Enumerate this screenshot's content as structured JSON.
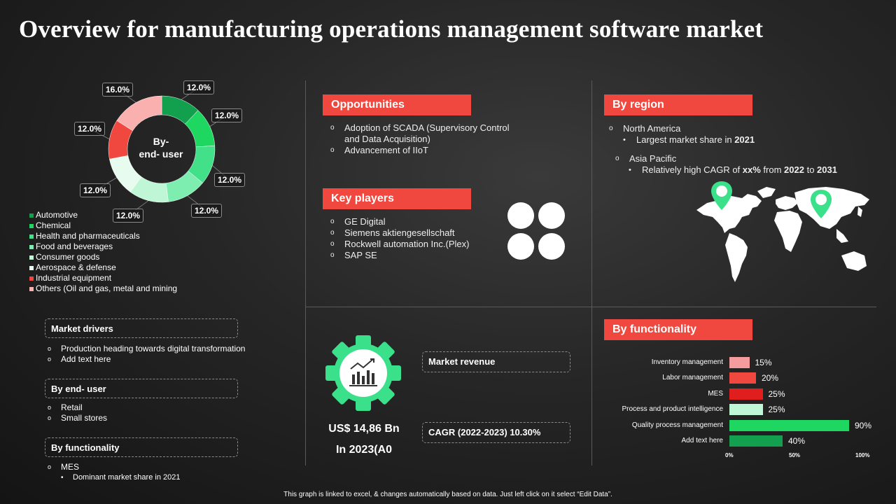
{
  "title": "Overview for manufacturing operations management software market",
  "donut": {
    "center_line1": "By-",
    "center_line2": "end- user"
  },
  "chart_data": [
    {
      "type": "pie",
      "title": "By- end- user",
      "categories": [
        "Automotive",
        "Chemical",
        "Health and pharmaceuticals",
        "Food and beverages",
        "Consumer goods",
        "Aerospace & defense",
        "Industrial equipment",
        "Others (Oil and gas, metal and mining"
      ],
      "values": [
        12.0,
        12.0,
        12.0,
        12.0,
        12.0,
        12.0,
        12.0,
        16.0
      ],
      "labels": [
        "12.0%",
        "12.0%",
        "12.0%",
        "12.0%",
        "12.0%",
        "12.0%",
        "12.0%",
        "16.0%"
      ],
      "colors": [
        "#12a04f",
        "#1ed760",
        "#43e08a",
        "#7dedb0",
        "#bff7d6",
        "#e7fbef",
        "#f0483e",
        "#fbb0b0"
      ]
    },
    {
      "type": "bar",
      "orientation": "horizontal",
      "title": "By functionality",
      "categories": [
        "Inventory management",
        "Labor management",
        "MES",
        "Process and product intelligence",
        "Quality process management",
        "Add text here"
      ],
      "values": [
        15,
        20,
        25,
        25,
        90,
        40
      ],
      "value_labels": [
        "15%",
        "20%",
        "25%",
        "25%",
        "90%",
        "40%"
      ],
      "colors": [
        "#f79c9c",
        "#f0483e",
        "#e01e1e",
        "#bff7d6",
        "#1ed760",
        "#12a04f"
      ],
      "xlim": [
        0,
        100
      ],
      "ticks": [
        "0%",
        "50%",
        "100%"
      ]
    }
  ],
  "market_drivers": {
    "title": "Market drivers",
    "items": [
      "Production heading towards digital transformation",
      "Add text here"
    ]
  },
  "by_end_user": {
    "title": "By end- user",
    "items": [
      "Retail",
      "Small stores"
    ]
  },
  "by_functionality_left": {
    "title": "By functionality",
    "item": "MES",
    "sub": "Dominant market share in 2021"
  },
  "opportunities": {
    "title": "Opportunities",
    "item1_line1": "Adoption of SCADA (Supervisory Control",
    "item1_line2": "and Data Acquisition)",
    "item2": "Advancement of IIoT"
  },
  "key_players": {
    "title": "Key players",
    "items": [
      "GE Digital",
      "Siemens aktiengesellschaft",
      "Rockwell automation Inc.(Plex)",
      "SAP SE"
    ]
  },
  "by_region": {
    "title": "By region",
    "na": "North America",
    "na_sub_text": "Largest market share in ",
    "na_sub_year": "2021",
    "ap": "Asia Pacific",
    "ap_sub_text": "Relatively high CAGR of ",
    "ap_sub_pct": "xx%",
    "ap_sub_from": " from ",
    "ap_sub_y1": "2022",
    "ap_sub_to": " to ",
    "ap_sub_y2": "2031"
  },
  "revenue": {
    "amount": "US$ 14,86 Bn",
    "year": "In 2023(A0",
    "market_revenue_label": "Market revenue",
    "cagr_label": "CAGR (2022-2023) 10.30%"
  },
  "by_functionality_header": "By functionality",
  "footer": "This graph is linked to excel, & changes automatically based on data. Just left click on it select “Edit Data”.",
  "markers": {
    "bullet_hollow": "o",
    "bullet_solid": "•"
  },
  "colors": {
    "accent_red": "#f0483e",
    "green": "#1ed760"
  }
}
